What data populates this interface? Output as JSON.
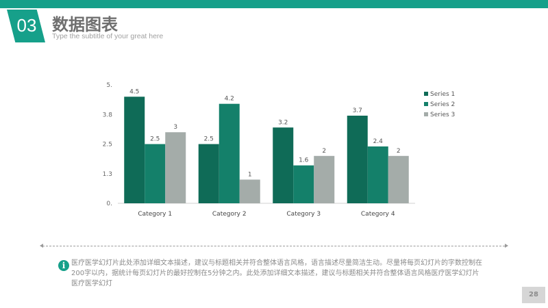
{
  "header": {
    "section_number": "03",
    "title": "数据图表",
    "subtitle": "Type the subtitle of your great here"
  },
  "colors": {
    "accent": "#16a08a",
    "series_1": "#0f6b57",
    "series_2": "#14806a",
    "series_3": "#a4aca9"
  },
  "chart_data": {
    "type": "bar",
    "categories": [
      "Category 1",
      "Category 2",
      "Category 3",
      "Category 4"
    ],
    "series": [
      {
        "name": "Series 1",
        "values": [
          4.5,
          2.5,
          3.2,
          3.7
        ],
        "labels": [
          "4.5",
          "2.5",
          "3.2",
          "3.7"
        ]
      },
      {
        "name": "Series 2",
        "values": [
          2.5,
          4.2,
          1.6,
          2.4
        ],
        "labels": [
          "2.5",
          "4.2",
          "1.6",
          "2.4"
        ]
      },
      {
        "name": "Series 3",
        "values": [
          3,
          1,
          2,
          2
        ],
        "labels": [
          "3",
          "1",
          "2",
          "2"
        ]
      }
    ],
    "y_ticks": [
      {
        "value": 0,
        "label": "0."
      },
      {
        "value": 1.25,
        "label": "1.3"
      },
      {
        "value": 2.5,
        "label": "2.5"
      },
      {
        "value": 3.75,
        "label": "3.8"
      },
      {
        "value": 5,
        "label": "5."
      }
    ],
    "ylim": [
      0,
      5
    ],
    "grid": false,
    "legend_position": "right"
  },
  "description": "医疗医学幻灯片此处添加详细文本描述，建议与标题相关并符合整体语言风格，语言描述尽量简洁生动。尽量将每页幻灯片的字数控制在200字以内，据统计每页幻灯片的最好控制在5分钟之内。此处添加详细文本描述，建议与标题相关并符合整体语言风格医疗医学幻灯片医疗医学幻灯",
  "page_number": "28"
}
